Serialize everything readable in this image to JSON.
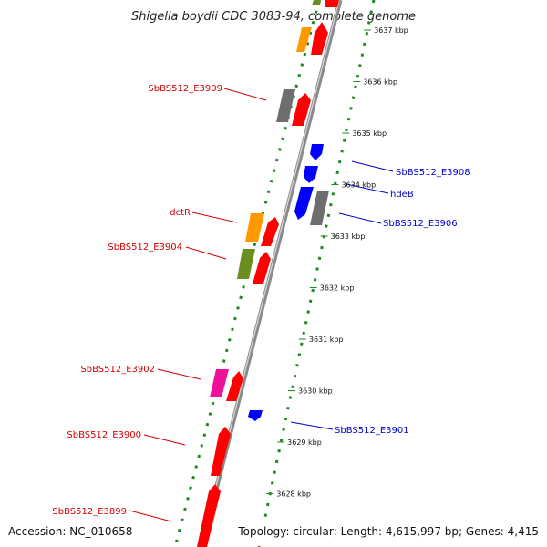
{
  "title": "Shigella boydii CDC 3083-94, complete genome",
  "footer": {
    "accession": "Accession: NC_010658",
    "summary": "Topology: circular; Length: 4,615,997 bp; Genes: 4,415"
  },
  "colors": {
    "forward_label": "#d40000",
    "reverse_label": "#0000cc",
    "backbone": "#8a8a8a",
    "dotted_track": "#1f8a1f",
    "red": "#ff0000",
    "orange": "#ff9900",
    "gray": "#6e6e6e",
    "olive": "#6b8e23",
    "magenta": "#ee1199",
    "blue": "#0000ff"
  },
  "ticks": [
    {
      "label": "3637 kbp"
    },
    {
      "label": "3636 kbp"
    },
    {
      "label": "3635 kbp"
    },
    {
      "label": "3634 kbp"
    },
    {
      "label": "3633 kbp"
    },
    {
      "label": "3632 kbp"
    },
    {
      "label": "3631 kbp"
    },
    {
      "label": "3630 kbp"
    },
    {
      "label": "3629 kbp"
    },
    {
      "label": "3628 kbp"
    }
  ],
  "forward_labels": [
    {
      "text": "SbBS512_E3909"
    },
    {
      "text": "dctR"
    },
    {
      "text": "SbBS512_E3904"
    },
    {
      "text": "SbBS512_E3902"
    },
    {
      "text": "SbBS512_E3900"
    },
    {
      "text": "SbBS512_E3899"
    }
  ],
  "reverse_labels": [
    {
      "text": "SbBS512_E3908"
    },
    {
      "text": "hdeB"
    },
    {
      "text": "SbBS512_E3906"
    },
    {
      "text": "SbBS512_E3901"
    }
  ]
}
